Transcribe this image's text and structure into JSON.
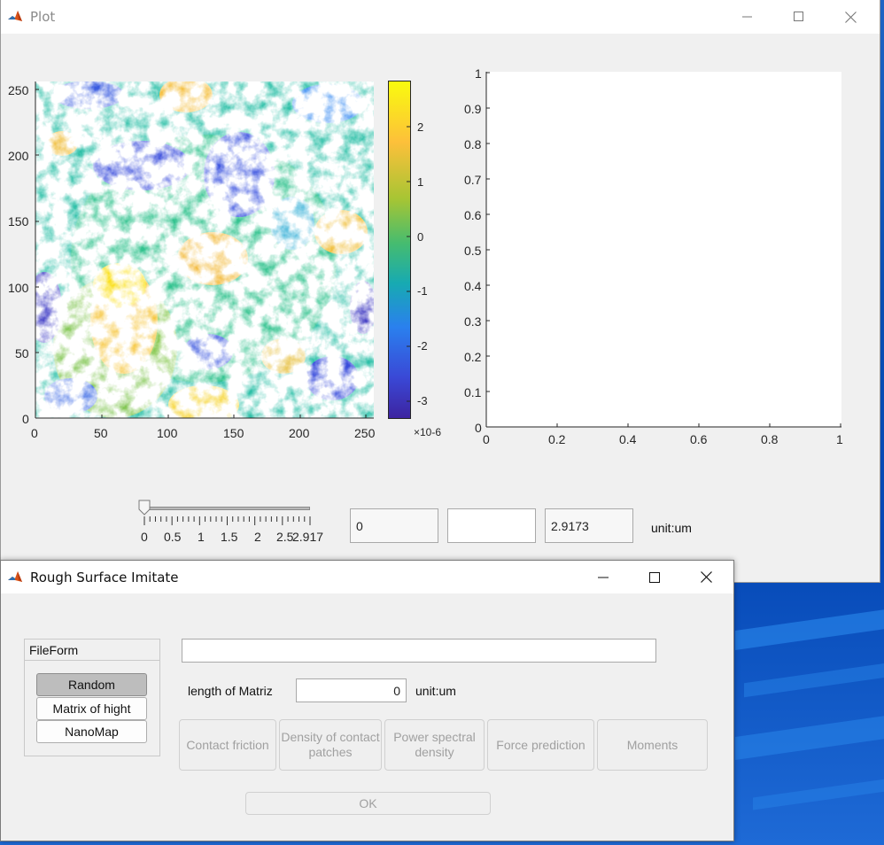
{
  "plot_window": {
    "title": "Plot",
    "contour_axes": {
      "x_ticks": [
        "0",
        "50",
        "100",
        "150",
        "200",
        "250"
      ],
      "y_ticks": [
        "0",
        "50",
        "100",
        "150",
        "200",
        "250"
      ]
    },
    "colorbar": {
      "ticks": [
        "2",
        "1",
        "0",
        "-1",
        "-2",
        "-3"
      ],
      "exponent": "×10-6",
      "colors": [
        "#f9fb0e",
        "#fdbf3b",
        "#a9c52f",
        "#3fbc73",
        "#1fa8b8",
        "#2a7ff0",
        "#3a4bd8",
        "#3c26a4"
      ]
    },
    "empty_axes": {
      "x_ticks": [
        "0",
        "0.2",
        "0.4",
        "0.6",
        "0.8",
        "1"
      ],
      "y_ticks": [
        "0",
        "0.1",
        "0.2",
        "0.3",
        "0.4",
        "0.5",
        "0.6",
        "0.7",
        "0.8",
        "0.9",
        "1"
      ]
    },
    "slider": {
      "ticks": [
        "0",
        "0.5",
        "1",
        "1.5",
        "2",
        "2.5",
        "2.917"
      ],
      "value": 0
    },
    "field_min": "0",
    "field_mid": "",
    "field_max": "2.9173",
    "unit_label": "unit:um"
  },
  "surface_window": {
    "title": "Rough Surface Imitate",
    "fileform_group": {
      "title": "FileForm",
      "options": [
        "Random",
        "Matrix of hight",
        "NanoMap"
      ],
      "selected": "Random"
    },
    "path_field": "",
    "length_label": "length of Matriz",
    "length_value": "0",
    "length_unit": "unit:um",
    "actions": [
      "Contact friction",
      "Density of contact patches",
      "Power spectral density",
      "Force prediction",
      "Moments"
    ],
    "ok_label": "OK"
  }
}
